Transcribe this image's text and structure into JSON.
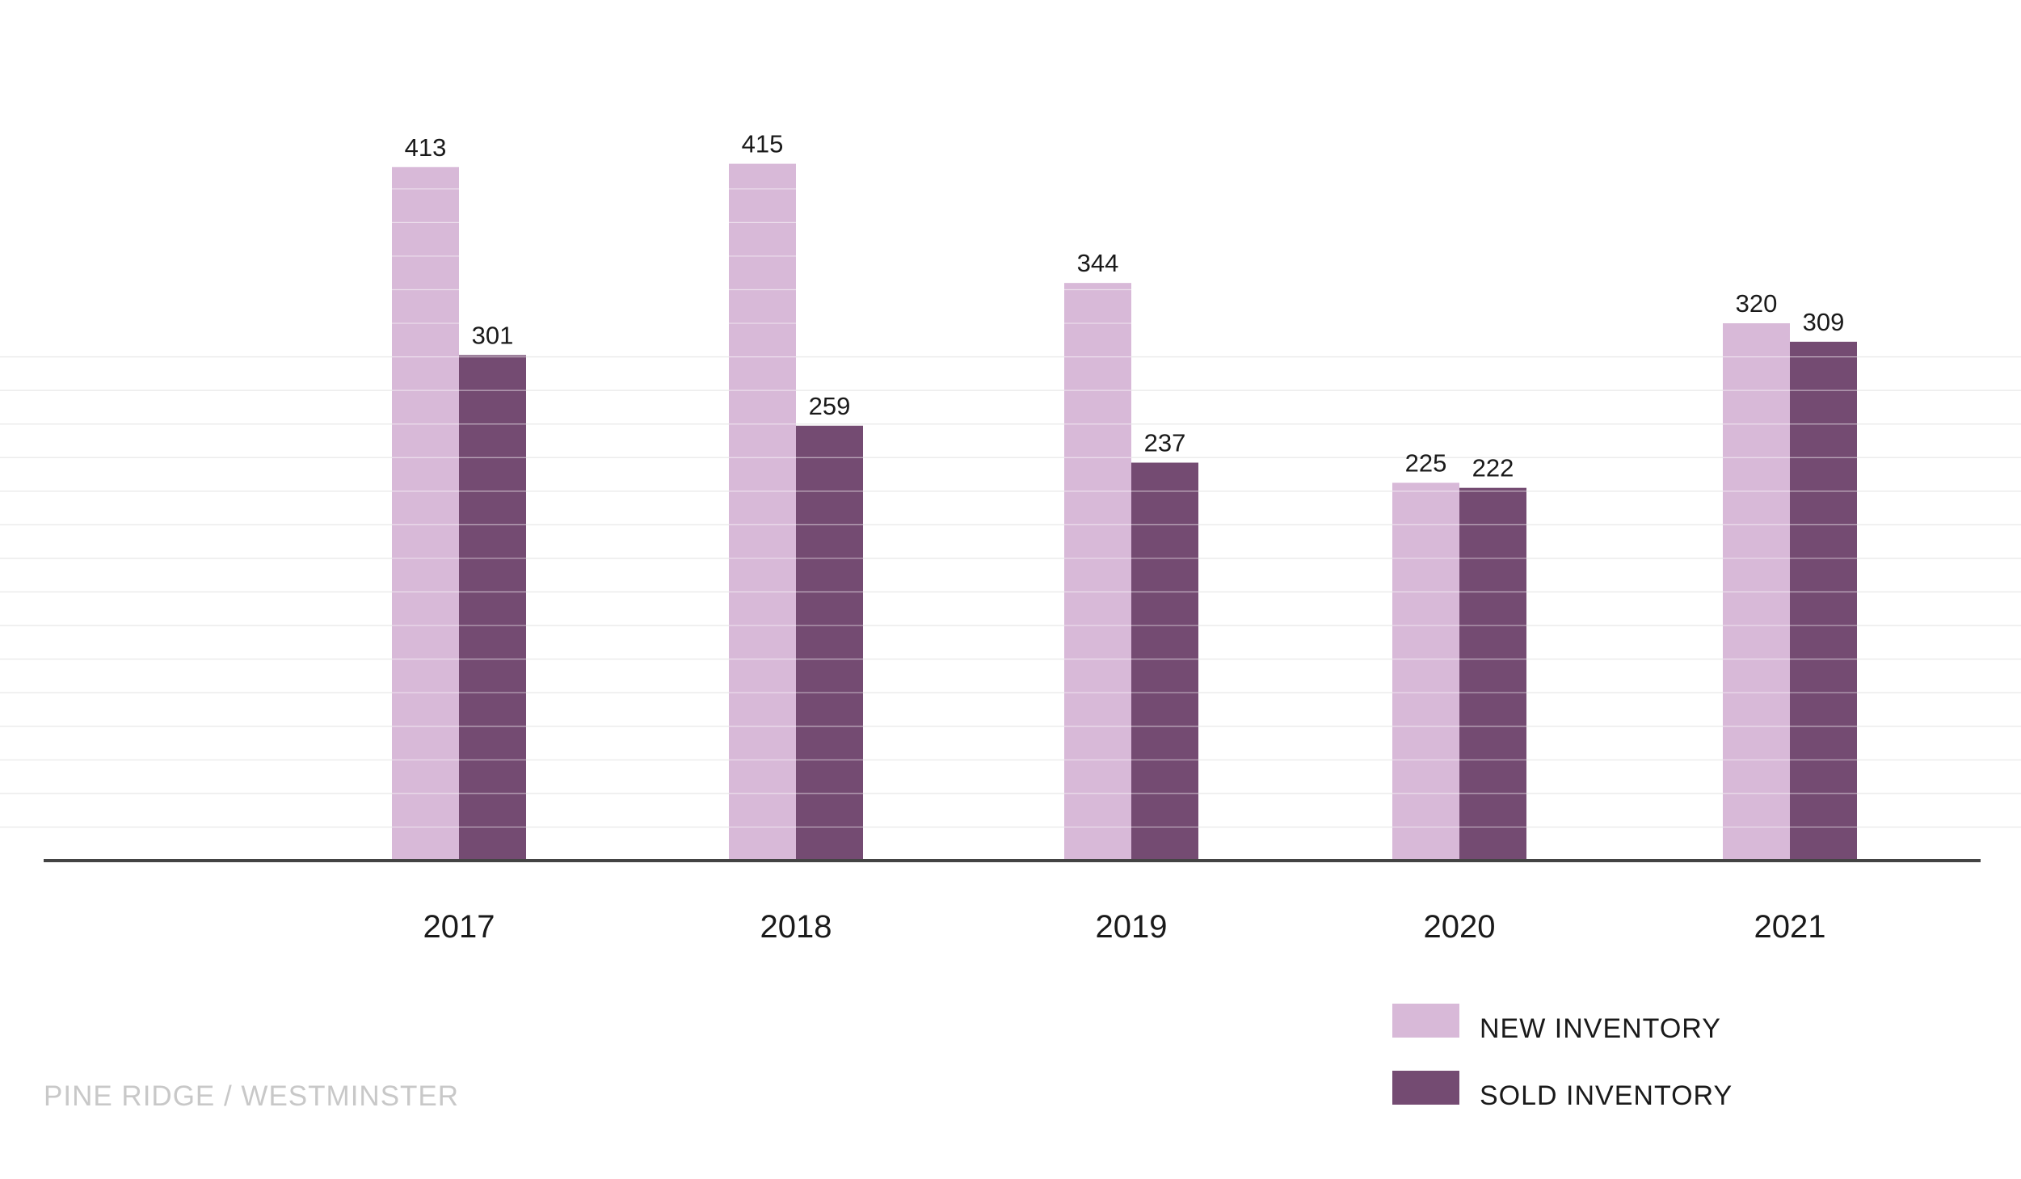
{
  "chart_data": {
    "type": "bar",
    "categories": [
      "2017",
      "2018",
      "2019",
      "2020",
      "2021"
    ],
    "series": [
      {
        "name": "NEW INVENTORY",
        "values": [
          413,
          415,
          344,
          225,
          320
        ],
        "color": "#d8b9d8"
      },
      {
        "name": "SOLD INVENTORY",
        "values": [
          301,
          259,
          237,
          222,
          309
        ],
        "color": "#744b72"
      }
    ],
    "ylim": [
      0,
      500
    ],
    "grid": true,
    "gridline_step": 20,
    "legend_position": "bottom-right",
    "title": "",
    "xlabel": "",
    "ylabel": "",
    "colors": {
      "grid": "#ececec",
      "bar_stripe": "#ffffff",
      "axis": "#444444"
    }
  },
  "footer": {
    "label": "PINE RIDGE / WESTMINSTER"
  }
}
